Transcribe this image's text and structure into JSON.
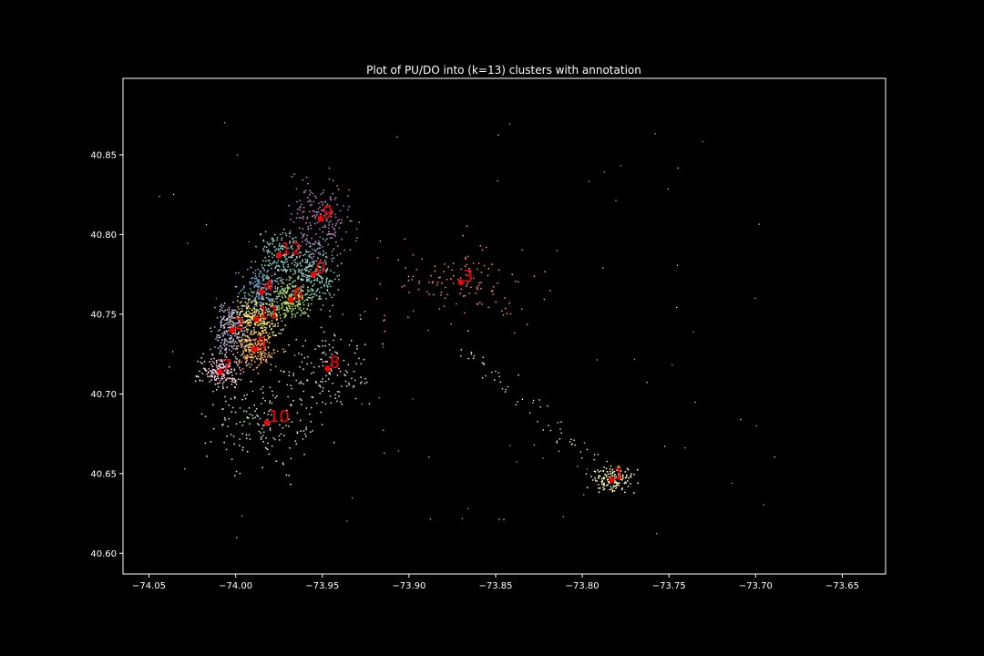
{
  "chart_data": {
    "type": "scatter",
    "title": "Plot of PU/DO into (k=13) clusters with annotation",
    "xlabel": "",
    "ylabel": "",
    "xlim": [
      -74.065,
      -73.625
    ],
    "ylim": [
      40.587,
      40.898
    ],
    "x_ticks": [
      -74.05,
      -74.0,
      -73.95,
      -73.9,
      -73.85,
      -73.8,
      -73.75,
      -73.7,
      -73.65
    ],
    "x_tick_labels": [
      "−74.05",
      "−74.00",
      "−73.95",
      "−73.90",
      "−73.85",
      "−73.80",
      "−73.75",
      "−73.70",
      "−73.65"
    ],
    "y_ticks": [
      40.6,
      40.65,
      40.7,
      40.75,
      40.8,
      40.85
    ],
    "y_tick_labels": [
      "40.60",
      "40.65",
      "40.70",
      "40.75",
      "40.80",
      "40.85"
    ],
    "grid": false,
    "background": "#000000",
    "annotation_color": "#ff0000",
    "centroid_color": "#ff0000",
    "clusters": [
      {
        "label": "0",
        "x": -73.955,
        "y": 40.775,
        "color": "#8dd3c7"
      },
      {
        "label": "1",
        "x": -73.783,
        "y": 40.646,
        "color": "#ffffb3"
      },
      {
        "label": "2",
        "x": -74.002,
        "y": 40.74,
        "color": "#bebada"
      },
      {
        "label": "3",
        "x": -73.87,
        "y": 40.77,
        "color": "#fb8072"
      },
      {
        "label": "4",
        "x": -73.985,
        "y": 40.764,
        "color": "#80b1d3"
      },
      {
        "label": "5",
        "x": -73.989,
        "y": 40.728,
        "color": "#fdb462"
      },
      {
        "label": "6",
        "x": -73.968,
        "y": 40.759,
        "color": "#b3de69"
      },
      {
        "label": "7",
        "x": -74.009,
        "y": 40.714,
        "color": "#fccde5"
      },
      {
        "label": "8",
        "x": -73.947,
        "y": 40.716,
        "color": "#d9d9d9"
      },
      {
        "label": "9",
        "x": -73.951,
        "y": 40.81,
        "color": "#bc80bd"
      },
      {
        "label": "10",
        "x": -73.982,
        "y": 40.682,
        "color": "#ccebc5"
      },
      {
        "label": "11",
        "x": -73.988,
        "y": 40.747,
        "color": "#ffed6f"
      },
      {
        "label": "12",
        "x": -73.975,
        "y": 40.787,
        "color": "#8dd3c7"
      }
    ]
  }
}
